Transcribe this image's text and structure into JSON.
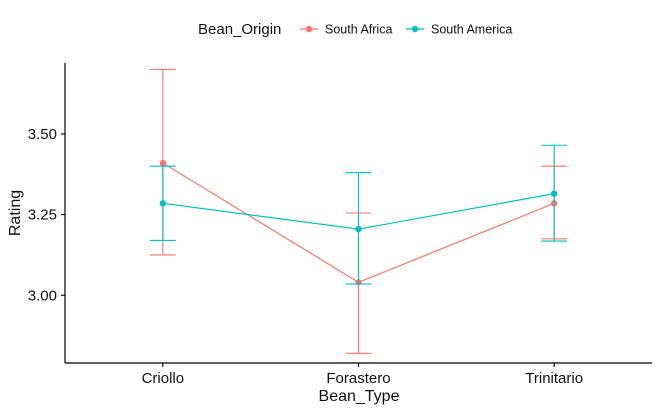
{
  "chart_data": {
    "type": "line",
    "title": "",
    "xlabel": "Bean_Type",
    "ylabel": "Rating",
    "categories": [
      "Criollo",
      "Forastero",
      "Trinitario"
    ],
    "ylim": [
      2.79,
      3.72
    ],
    "yticks": [
      3.0,
      3.25,
      3.5
    ],
    "ytick_labels": [
      "3.00",
      "3.25",
      "3.50"
    ],
    "grid": false,
    "error_bars": true,
    "legend": {
      "title": "Bean_Origin",
      "position": "top"
    },
    "series": [
      {
        "name": "South Africa",
        "color": "#F8766D",
        "values": [
          3.41,
          3.04,
          3.285
        ],
        "lower": [
          3.125,
          2.82,
          3.175
        ],
        "upper": [
          3.7,
          3.255,
          3.4
        ]
      },
      {
        "name": "South America",
        "color": "#00BFC4",
        "values": [
          3.285,
          3.205,
          3.315
        ],
        "lower": [
          3.17,
          3.035,
          3.168
        ],
        "upper": [
          3.4,
          3.38,
          3.465
        ]
      }
    ]
  }
}
